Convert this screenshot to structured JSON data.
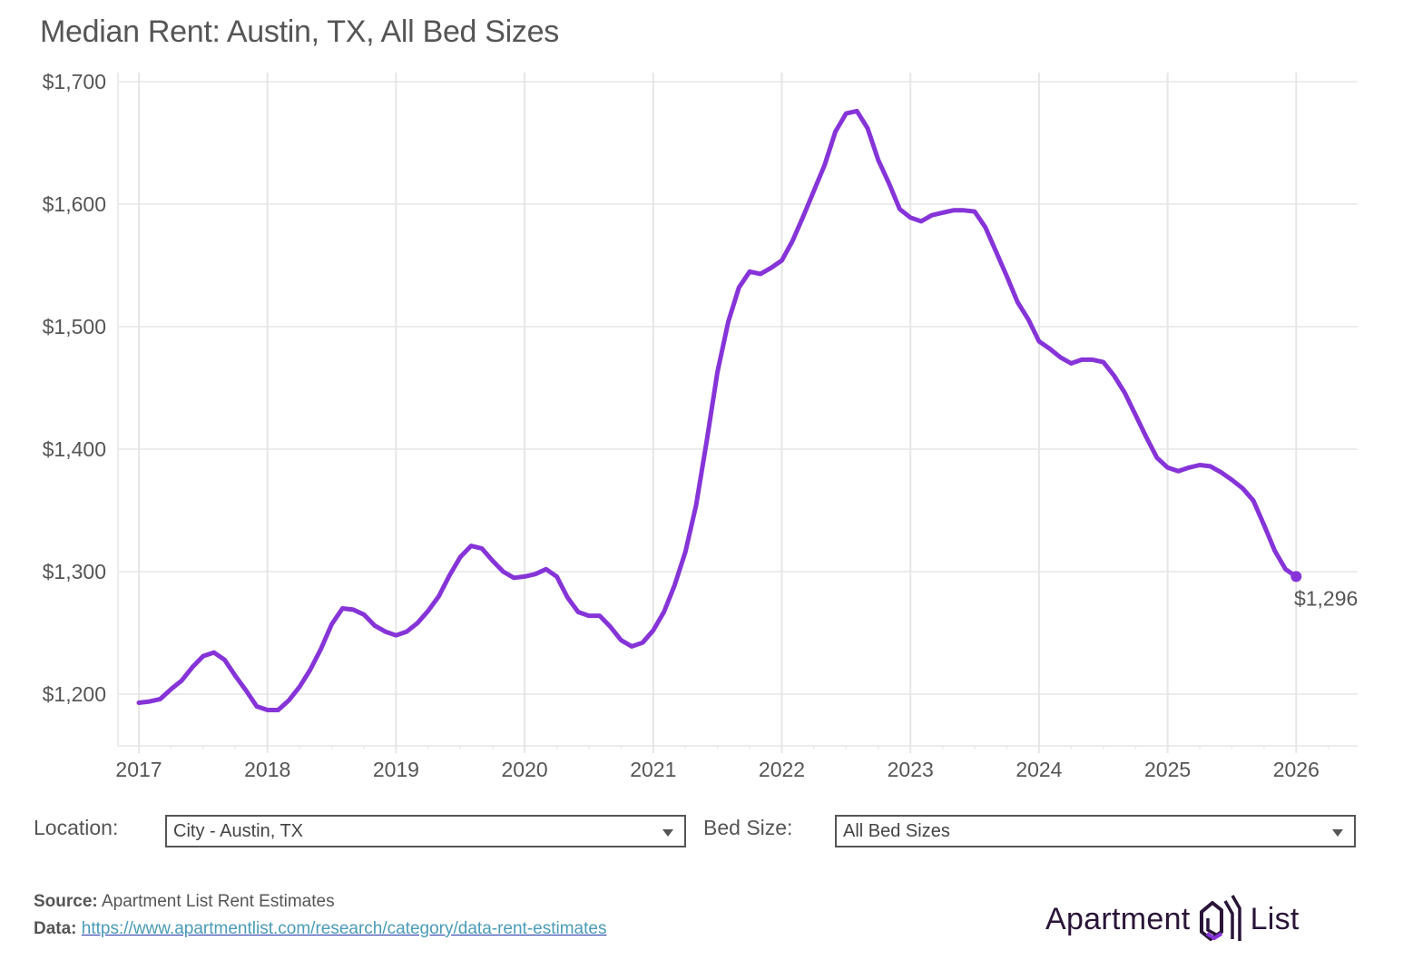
{
  "title": "Median Rent: Austin, TX, All Bed Sizes",
  "chart_data": {
    "type": "line",
    "title": "Median Rent: Austin, TX, All Bed Sizes",
    "xlabel": "",
    "ylabel": "",
    "x_start": "2017-01",
    "x_ticks": [
      "2017",
      "2018",
      "2019",
      "2020",
      "2021",
      "2022",
      "2023",
      "2024",
      "2025",
      "2026"
    ],
    "y_ticks": [
      "$1,200",
      "$1,300",
      "$1,400",
      "$1,500",
      "$1,600",
      "$1,700"
    ],
    "y_tick_values": [
      1200,
      1300,
      1400,
      1500,
      1600,
      1700
    ],
    "xlim": [
      2016.85,
      2026.5
    ],
    "ylim": [
      1160,
      1705
    ],
    "grid": true,
    "line_color": "#8634d8",
    "series": [
      {
        "name": "Median Rent",
        "values": [
          1193,
          1194,
          1196,
          1204,
          1211,
          1222,
          1231,
          1234,
          1228,
          1215,
          1203,
          1190,
          1187,
          1187,
          1195,
          1206,
          1220,
          1237,
          1257,
          1270,
          1269,
          1265,
          1256,
          1251,
          1248,
          1251,
          1258,
          1268,
          1280,
          1297,
          1312,
          1321,
          1319,
          1309,
          1300,
          1295,
          1296,
          1298,
          1302,
          1296,
          1279,
          1267,
          1264,
          1264,
          1255,
          1244,
          1239,
          1242,
          1252,
          1267,
          1289,
          1316,
          1354,
          1407,
          1463,
          1504,
          1532,
          1545,
          1543,
          1548,
          1554,
          1570,
          1590,
          1611,
          1632,
          1659,
          1674,
          1676,
          1662,
          1636,
          1617,
          1596,
          1589,
          1586,
          1591,
          1593,
          1595,
          1595,
          1594,
          1581,
          1561,
          1541,
          1520,
          1506,
          1488,
          1482,
          1475,
          1470,
          1473,
          1473,
          1471,
          1460,
          1446,
          1428,
          1410,
          1393,
          1385,
          1382,
          1385,
          1387,
          1386,
          1381,
          1375,
          1368,
          1358,
          1338,
          1317,
          1302,
          1296
        ]
      }
    ],
    "end_label": "$1,296"
  },
  "controls": {
    "location_label": "Location:",
    "location_value": "City - Austin, TX",
    "bed_label": "Bed Size:",
    "bed_value": "All Bed Sizes"
  },
  "footer": {
    "source_label": "Source:",
    "source_text": "Apartment List Rent Estimates",
    "data_label": "Data:",
    "data_link": "https://www.apartmentlist.com/research/category/data-rent-estimates"
  },
  "logo": {
    "left_word": "Apartment",
    "right_word": "List",
    "icon": "house-icon",
    "accent_color": "#8634d8",
    "dark_color": "#2a1538"
  }
}
